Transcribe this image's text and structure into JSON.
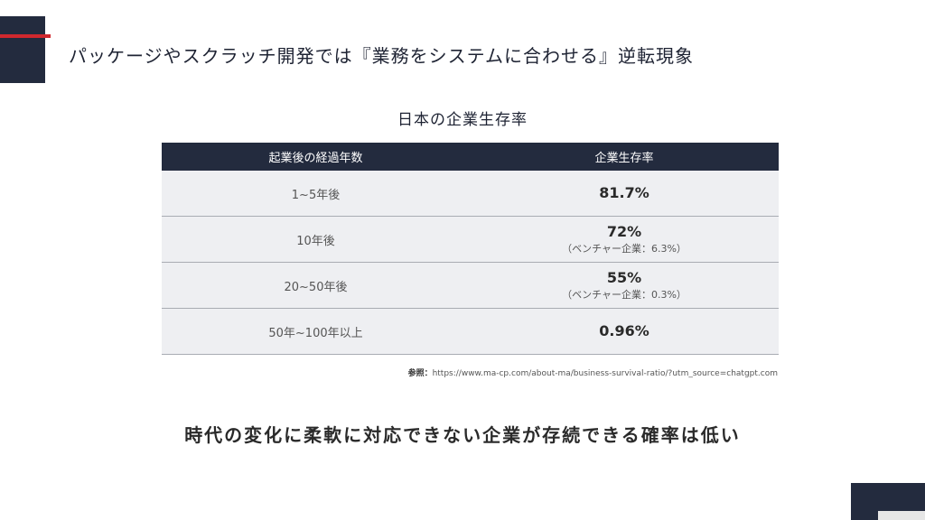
{
  "slide": {
    "title": "パッケージやスクラッチ開発では『業務をシステムに合わせる』逆転現象"
  },
  "table": {
    "title": "日本の企業生存率",
    "headers": [
      "起業後の経過年数",
      "企業生存率"
    ],
    "rows": [
      {
        "years": "1~5年後",
        "rate": "81.7%",
        "note": ""
      },
      {
        "years": "10年後",
        "rate": "72%",
        "note": "（ベンチャー企業：6.3%）"
      },
      {
        "years": "20~50年後",
        "rate": "55%",
        "note": "（ベンチャー企業：0.3%）"
      },
      {
        "years": "50年~100年以上",
        "rate": "0.96%",
        "note": ""
      }
    ]
  },
  "source": {
    "label": "参照：",
    "url": "https://www.ma-cp.com/about-ma/business-survival-ratio/?utm_source=chatgpt.com"
  },
  "conclusion": "時代の変化に柔軟に対応できない企業が存続できる確率は低い",
  "colors": {
    "navy": "#232b3e",
    "accent_red": "#d0282e",
    "row_bg": "#eeeff2"
  }
}
